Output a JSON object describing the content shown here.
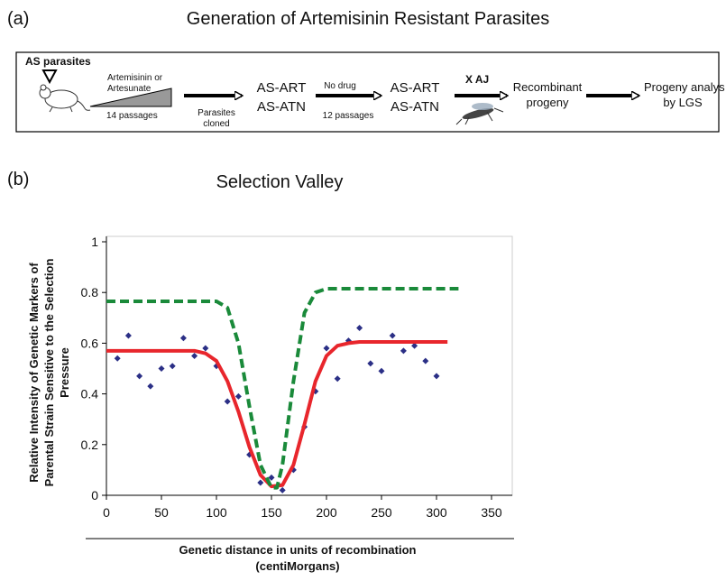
{
  "panel_a": {
    "label": "(a)",
    "title": "Generation of Artemisinin Resistant Parasites",
    "start": "AS parasites",
    "drug": [
      "Artemisinin or",
      "Artesunate"
    ],
    "passages_1": "14 passages",
    "cloned": [
      "Parasites",
      "cloned"
    ],
    "strains_1": [
      "AS-ART",
      "AS-ATN"
    ],
    "no_drug": "No drug",
    "passages_2": "12 passages",
    "strains_2": [
      "AS-ART",
      "AS-ATN"
    ],
    "cross": "X AJ",
    "recombinant": [
      "Recombinant",
      "progeny"
    ],
    "analysis": [
      "Progeny analys",
      "by LGS"
    ]
  },
  "chart_data": {
    "type": "scatter",
    "panel_label": "(b)",
    "title": "Selection Valley",
    "y_label": [
      "Relative Intensity of Genetic Markers of",
      "Parental Strain Sensitive to the Selection",
      "Pressure"
    ],
    "x_label": [
      "Genetic distance in units of recombination",
      "(centiMorgans)"
    ],
    "xlim": [
      0,
      350
    ],
    "xticks": [
      0,
      50,
      100,
      150,
      200,
      250,
      300,
      350
    ],
    "ylim": [
      0,
      1
    ],
    "yticks": [
      0,
      0.2,
      0.4,
      0.6,
      0.8,
      1
    ],
    "series": [
      {
        "type": "scatter",
        "color": "#2b2f86",
        "x": [
          10,
          20,
          30,
          40,
          50,
          60,
          70,
          80,
          90,
          100,
          110,
          120,
          130,
          140,
          150,
          160,
          170,
          180,
          190,
          200,
          210,
          220,
          230,
          240,
          250,
          260,
          270,
          280,
          290,
          300
        ],
        "values": [
          0.54,
          0.63,
          0.47,
          0.43,
          0.5,
          0.51,
          0.62,
          0.55,
          0.58,
          0.51,
          0.37,
          0.39,
          0.16,
          0.05,
          0.07,
          0.02,
          0.1,
          0.27,
          0.41,
          0.58,
          0.46,
          0.61,
          0.66,
          0.52,
          0.49,
          0.63,
          0.57,
          0.59,
          0.53,
          0.47
        ]
      },
      {
        "type": "line",
        "color": "#e8262c",
        "dashed": false,
        "x": [
          0,
          80,
          90,
          100,
          110,
          120,
          130,
          140,
          150,
          160,
          170,
          180,
          190,
          200,
          210,
          220,
          230,
          310
        ],
        "values": [
          0.57,
          0.57,
          0.56,
          0.53,
          0.45,
          0.33,
          0.19,
          0.08,
          0.035,
          0.04,
          0.12,
          0.28,
          0.45,
          0.55,
          0.59,
          0.6,
          0.605,
          0.605
        ]
      },
      {
        "type": "line",
        "color": "#1a8a3a",
        "dashed": true,
        "x": [
          0,
          100,
          110,
          120,
          130,
          140,
          150,
          155,
          160,
          170,
          180,
          190,
          200,
          320
        ],
        "values": [
          0.765,
          0.765,
          0.74,
          0.6,
          0.35,
          0.12,
          0.03,
          0.03,
          0.12,
          0.45,
          0.72,
          0.8,
          0.815,
          0.815
        ]
      }
    ]
  }
}
